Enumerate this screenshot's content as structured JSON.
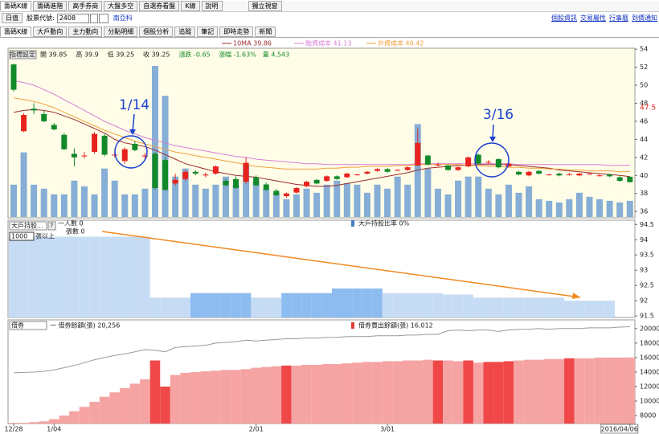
{
  "ui": {
    "tabs_top": [
      "籌碼K線",
      "籌碼進階",
      "高手券商",
      "大盤多空",
      "自選券看盤",
      "K線",
      "說明"
    ],
    "window_button": "獨立視窗",
    "mode": "日值",
    "stock_label": "股票代號:",
    "stock_code": "2408",
    "stock_name": "南亞科",
    "links": [
      "個股資訊",
      "交易屬性",
      "行事曆",
      "到價通知"
    ],
    "tabs": [
      "籌碼K線",
      "大戶動向",
      "主力動向",
      "分點明細",
      "個股分析",
      "追蹤",
      "筆記",
      "即時走勢",
      "新聞"
    ],
    "settings_button": "指標設定"
  },
  "chart_data": [
    {
      "type": "candlestick",
      "info": [
        "開 39.85",
        "高 39.9",
        "低 39.25",
        "收 39.25",
        "漲跌 -0.65",
        "漲幅 -1.63%",
        "量 4,543"
      ],
      "categories": [
        "12/28",
        null,
        null,
        null,
        "1/04",
        null,
        null,
        null,
        null,
        null,
        null,
        null,
        null,
        null,
        null,
        null,
        null,
        null,
        null,
        null,
        null,
        null,
        null,
        null,
        "2/01",
        null,
        null,
        null,
        null,
        null,
        null,
        null,
        null,
        null,
        null,
        null,
        null,
        "3/01",
        null,
        null,
        null,
        null,
        null,
        null,
        null,
        null,
        null,
        null,
        null,
        null,
        null,
        null,
        null,
        null,
        null,
        null,
        null,
        null,
        null,
        null,
        null,
        "2016/04/06"
      ],
      "open": [
        52.3,
        44.9,
        47.4,
        46.8,
        45.6,
        44.5,
        42.4,
        42.2,
        42.6,
        44.4,
        42.3,
        41.6,
        43.5,
        42.1,
        42.4,
        41.7,
        39.1,
        39.6,
        40.4,
        40.0,
        40.2,
        39.4,
        39.6,
        39.3,
        39.8,
        39.0,
        38.3,
        37.7,
        38.1,
        38.8,
        39.5,
        39.4,
        39.9,
        39.8,
        40.1,
        40.2,
        40.5,
        40.7,
        40.6,
        40.6,
        41.1,
        42.2,
        41.2,
        41.1,
        40.6,
        41.0,
        42.3,
        41.5,
        41.8,
        41.0,
        40.4,
        40.0,
        40.5,
        40.1,
        40.2,
        40.1,
        40.0,
        40.2,
        40.0,
        40.1,
        39.8,
        39.85
      ],
      "high": [
        52.4,
        46.9,
        48.0,
        47.2,
        45.8,
        44.7,
        43.0,
        42.6,
        44.8,
        44.6,
        42.6,
        43.1,
        43.8,
        42.5,
        42.6,
        42.0,
        40.2,
        40.6,
        40.6,
        40.3,
        41.1,
        39.6,
        39.9,
        42.0,
        40.0,
        39.2,
        38.5,
        38.1,
        38.7,
        39.4,
        39.6,
        40.0,
        40.0,
        40.3,
        40.2,
        40.5,
        40.8,
        40.8,
        40.7,
        41.0,
        45.2,
        42.3,
        41.4,
        41.2,
        41.0,
        42.1,
        42.4,
        41.7,
        41.9,
        41.4,
        40.5,
        40.5,
        40.6,
        40.2,
        40.3,
        40.3,
        40.3,
        40.3,
        40.2,
        40.2,
        39.9,
        39.9
      ],
      "low": [
        49.3,
        44.8,
        46.8,
        45.9,
        45.0,
        42.8,
        41.0,
        41.9,
        42.4,
        42.1,
        42.0,
        41.3,
        42.7,
        41.8,
        38.4,
        38.3,
        38.9,
        39.4,
        40.0,
        39.8,
        40.1,
        38.8,
        38.5,
        39.1,
        38.8,
        38.3,
        37.7,
        37.5,
        38.0,
        38.7,
        39.0,
        39.3,
        39.5,
        39.7,
        40.0,
        40.1,
        40.4,
        40.3,
        40.5,
        40.5,
        41.0,
        41.1,
        41.0,
        40.5,
        40.5,
        40.9,
        41.2,
        41.3,
        40.8,
        40.9,
        40.0,
        39.9,
        40.1,
        40.0,
        39.9,
        40.0,
        39.9,
        40.1,
        39.9,
        39.8,
        39.3,
        39.25
      ],
      "close": [
        49.5,
        46.7,
        47.2,
        46.0,
        45.1,
        42.9,
        42.0,
        42.2,
        44.6,
        42.3,
        42.3,
        42.9,
        42.8,
        42.2,
        38.6,
        38.4,
        39.5,
        40.4,
        40.2,
        40.1,
        41.0,
        38.9,
        38.6,
        41.4,
        38.9,
        38.4,
        37.8,
        38.0,
        38.6,
        39.3,
        39.1,
        39.9,
        39.6,
        40.2,
        40.1,
        40.4,
        40.7,
        40.4,
        40.6,
        40.9,
        43.6,
        41.2,
        41.2,
        40.6,
        40.9,
        42.0,
        41.3,
        41.5,
        40.9,
        41.3,
        40.1,
        40.4,
        40.2,
        40.1,
        40.0,
        40.1,
        40.2,
        40.2,
        40.0,
        39.9,
        39.4,
        39.25
      ],
      "volume": [
        9080,
        18160,
        9080,
        7950,
        6360,
        6360,
        10220,
        8630,
        6360,
        13620,
        10220,
        6360,
        6360,
        7950,
        42450,
        34050,
        11350,
        13620,
        9080,
        7950,
        9080,
        11350,
        9080,
        14760,
        10220,
        7950,
        6810,
        5000,
        6360,
        7950,
        6810,
        9080,
        10220,
        9530,
        9080,
        6810,
        9080,
        7950,
        11350,
        9080,
        26100,
        13620,
        7950,
        6360,
        10220,
        11350,
        11350,
        7950,
        6360,
        9080,
        6810,
        8630,
        5000,
        4540,
        4090,
        5000,
        6810,
        5680,
        5000,
        4540,
        4090,
        4543
      ],
      "up_color": "#e8231e",
      "down_color": "#138a2a",
      "volume_color": "#86aed6",
      "series": [
        {
          "name": "10MA 39.86",
          "color": "#9a2d2d",
          "values": [
            47.0,
            47.2,
            47.3,
            47.2,
            47.0,
            46.6,
            46.2,
            45.7,
            45.2,
            44.7,
            44.0,
            43.6,
            43.4,
            43.2,
            42.8,
            42.3,
            41.8,
            41.3,
            41.0,
            40.7,
            40.4,
            40.2,
            40.0,
            39.9,
            39.8,
            39.6,
            39.4,
            39.2,
            39.0,
            38.9,
            38.8,
            38.8,
            38.9,
            39.1,
            39.3,
            39.5,
            39.7,
            39.9,
            40.1,
            40.3,
            40.6,
            40.8,
            40.9,
            41.0,
            41.1,
            41.1,
            41.2,
            41.2,
            41.2,
            41.2,
            41.1,
            41.0,
            40.9,
            40.8,
            40.6,
            40.5,
            40.4,
            40.3,
            40.2,
            40.1,
            40.0,
            39.86
          ]
        },
        {
          "name": "融資成本 41.13",
          "color": "#d77fd6",
          "values": [
            50.5,
            50.3,
            50.0,
            49.5,
            49.0,
            48.4,
            47.8,
            47.2,
            46.6,
            46.0,
            45.5,
            45.0,
            44.6,
            44.2,
            43.9,
            43.6,
            43.3,
            43.1,
            42.9,
            42.7,
            42.5,
            42.3,
            42.1,
            42.0,
            41.8,
            41.7,
            41.6,
            41.5,
            41.4,
            41.3,
            41.3,
            41.2,
            41.2,
            41.2,
            41.2,
            41.2,
            41.2,
            41.2,
            41.2,
            41.2,
            41.3,
            41.3,
            41.3,
            41.3,
            41.3,
            41.3,
            41.3,
            41.3,
            41.3,
            41.3,
            41.2,
            41.2,
            41.2,
            41.2,
            41.2,
            41.2,
            41.2,
            41.2,
            41.2,
            41.1,
            41.1,
            41.13
          ]
        },
        {
          "name": "外資成本 40.42",
          "color": "#f0a23a",
          "values": [
            48.6,
            48.4,
            48.2,
            47.9,
            47.5,
            47.0,
            46.5,
            46.0,
            45.5,
            45.0,
            44.6,
            44.2,
            43.8,
            43.5,
            43.2,
            42.9,
            42.6,
            42.4,
            42.2,
            42.0,
            41.8,
            41.6,
            41.4,
            41.2,
            41.0,
            40.9,
            40.8,
            40.7,
            40.7,
            40.7,
            40.7,
            40.8,
            40.8,
            40.9,
            40.9,
            41.0,
            41.0,
            41.0,
            41.1,
            41.1,
            41.2,
            41.2,
            41.2,
            41.2,
            41.2,
            41.1,
            41.1,
            41.0,
            41.0,
            40.9,
            40.9,
            40.8,
            40.8,
            40.7,
            40.7,
            40.6,
            40.6,
            40.5,
            40.5,
            40.5,
            40.4,
            40.42
          ]
        }
      ],
      "price_marker": 47.5,
      "ylim": [
        35.3,
        54.1
      ],
      "yticks": [
        36,
        38,
        40,
        42,
        44,
        46,
        48,
        50,
        52,
        54
      ],
      "annotations": [
        "1/14",
        "3/16"
      ]
    },
    {
      "type": "step-area",
      "controls": [
        "大戶持股...",
        "?",
        "1000",
        "張以上"
      ],
      "texts": [
        "一人數 0",
        "張數 0"
      ],
      "legend": "大戶持股比率 0%",
      "values": [
        94.1,
        94.1,
        94.1,
        94.1,
        94.1,
        94.1,
        94.1,
        94.1,
        94.1,
        94.1,
        94.1,
        94.1,
        94.1,
        94.1,
        92.1,
        92.1,
        92.1,
        92.1,
        92.25,
        92.25,
        92.25,
        92.25,
        92.25,
        92.25,
        92.1,
        92.1,
        92.1,
        92.25,
        92.25,
        92.25,
        92.25,
        92.25,
        92.4,
        92.4,
        92.4,
        92.4,
        92.4,
        92.25,
        92.25,
        92.25,
        92.25,
        92.25,
        92.25,
        92.2,
        92.2,
        92.2,
        92.1,
        92.1,
        92.1,
        92.1,
        92.1,
        92.1,
        92.1,
        92.1,
        92.1,
        92.0,
        92.0,
        92.0,
        92.0,
        92.0,
        null,
        null
      ],
      "colors": [
        "#c6dcf5",
        "#c6dcf5",
        "#c6dcf5",
        "#c6dcf5",
        "#c6dcf5",
        "#c6dcf5",
        "#c6dcf5",
        "#c6dcf5",
        "#c6dcf5",
        "#c6dcf5",
        "#c6dcf5",
        "#c6dcf5",
        "#c6dcf5",
        "#c6dcf5",
        "#c6dcf5",
        "#c6dcf5",
        "#c6dcf5",
        "#c6dcf5",
        "#8cbcf0",
        "#8cbcf0",
        "#8cbcf0",
        "#8cbcf0",
        "#8cbcf0",
        "#8cbcf0",
        "#c6dcf5",
        "#c6dcf5",
        "#c6dcf5",
        "#8cbcf0",
        "#8cbcf0",
        "#8cbcf0",
        "#8cbcf0",
        "#8cbcf0",
        "#8cbcf0",
        "#8cbcf0",
        "#8cbcf0",
        "#8cbcf0",
        "#8cbcf0",
        "#c6dcf5",
        "#c6dcf5",
        "#c6dcf5",
        "#c6dcf5",
        "#c6dcf5",
        "#c6dcf5",
        "#c6dcf5",
        "#c6dcf5",
        "#c6dcf5",
        "#c6dcf5",
        "#c6dcf5",
        "#c6dcf5",
        "#c6dcf5",
        "#c6dcf5",
        "#c6dcf5",
        "#c6dcf5",
        "#c6dcf5",
        "#c6dcf5",
        "#c6dcf5",
        "#c6dcf5",
        "#c6dcf5",
        "#c6dcf5",
        "#c6dcf5",
        "#c6dcf5",
        "#c6dcf5"
      ],
      "ylim": [
        91.45,
        94.64
      ],
      "yticks": [
        91.5,
        92,
        92.5,
        93,
        93.5,
        94,
        94.5
      ]
    },
    {
      "type": "margin",
      "control": "借券",
      "series": [
        {
          "name": "一 借券餘額(張) 20,256",
          "color": "#9a9a9a",
          "values": [
            13900,
            13950,
            14000,
            14100,
            14300,
            14600,
            14900,
            15300,
            15700,
            16000,
            16300,
            16500,
            16800,
            17100,
            17000,
            16800,
            17400,
            17500,
            17600,
            17700,
            18000,
            18100,
            18200,
            18400,
            18300,
            18400,
            18500,
            18600,
            18600,
            18700,
            18700,
            18800,
            18800,
            18900,
            18900,
            18900,
            19000,
            19000,
            19000,
            19100,
            19100,
            19200,
            19200,
            19700,
            19800,
            19700,
            19800,
            19800,
            19600,
            19800,
            19900,
            19900,
            20000,
            19900,
            20000,
            20000,
            20000,
            20100,
            20100,
            20100,
            20200,
            20256
          ]
        },
        {
          "name": "借券賣出餘額(張) 16,012",
          "color": "#e23a3a",
          "values": [
            7000,
            7000,
            7100,
            7200,
            7500,
            8000,
            8600,
            9200,
            9900,
            10600,
            11200,
            11800,
            12400,
            13000,
            15600,
            12000,
            13600,
            13900,
            14000,
            14100,
            14200,
            14300,
            14300,
            14400,
            14600,
            14700,
            14800,
            14900,
            14900,
            15000,
            15000,
            15100,
            15100,
            15200,
            15300,
            15400,
            15400,
            15500,
            15500,
            15600,
            15600,
            15700,
            15600,
            15600,
            15500,
            15600,
            15300,
            15400,
            15400,
            15500,
            15600,
            15700,
            15700,
            15800,
            15800,
            15900,
            15900,
            15900,
            16000,
            16000,
            16000,
            16012
          ],
          "colors": [
            "#f5a3a3",
            "#f5a3a3",
            "#f5a3a3",
            "#f5a3a3",
            "#f5a3a3",
            "#f5a3a3",
            "#f5a3a3",
            "#f5a3a3",
            "#f5a3a3",
            "#f5a3a3",
            "#f5a3a3",
            "#f5a3a3",
            "#f5a3a3",
            "#f5a3a3",
            "#f04848",
            "#f04848",
            "#f5a3a3",
            "#f5a3a3",
            "#f5a3a3",
            "#f5a3a3",
            "#f5a3a3",
            "#f5a3a3",
            "#f5a3a3",
            "#f5a3a3",
            "#f5a3a3",
            "#f5a3a3",
            "#f5a3a3",
            "#f04848",
            "#f5a3a3",
            "#f5a3a3",
            "#f5a3a3",
            "#f5a3a3",
            "#f5a3a3",
            "#f5a3a3",
            "#f5a3a3",
            "#f5a3a3",
            "#f5a3a3",
            "#f5a3a3",
            "#f5a3a3",
            "#f5a3a3",
            "#f5a3a3",
            "#f5a3a3",
            "#f04848",
            "#f5a3a3",
            "#f5a3a3",
            "#f04848",
            "#f5a3a3",
            "#f04848",
            "#f04848",
            "#f04848",
            "#f5a3a3",
            "#f5a3a3",
            "#f5a3a3",
            "#f5a3a3",
            "#f5a3a3",
            "#f04848",
            "#f5a3a3",
            "#f5a3a3",
            "#f5a3a3",
            "#f5a3a3",
            "#f5a3a3",
            "#f5a3a3"
          ]
        }
      ],
      "ylim": [
        6900,
        21200
      ],
      "yticks": [
        8000,
        10000,
        12000,
        14000,
        16000,
        18000,
        20000
      ]
    }
  ]
}
